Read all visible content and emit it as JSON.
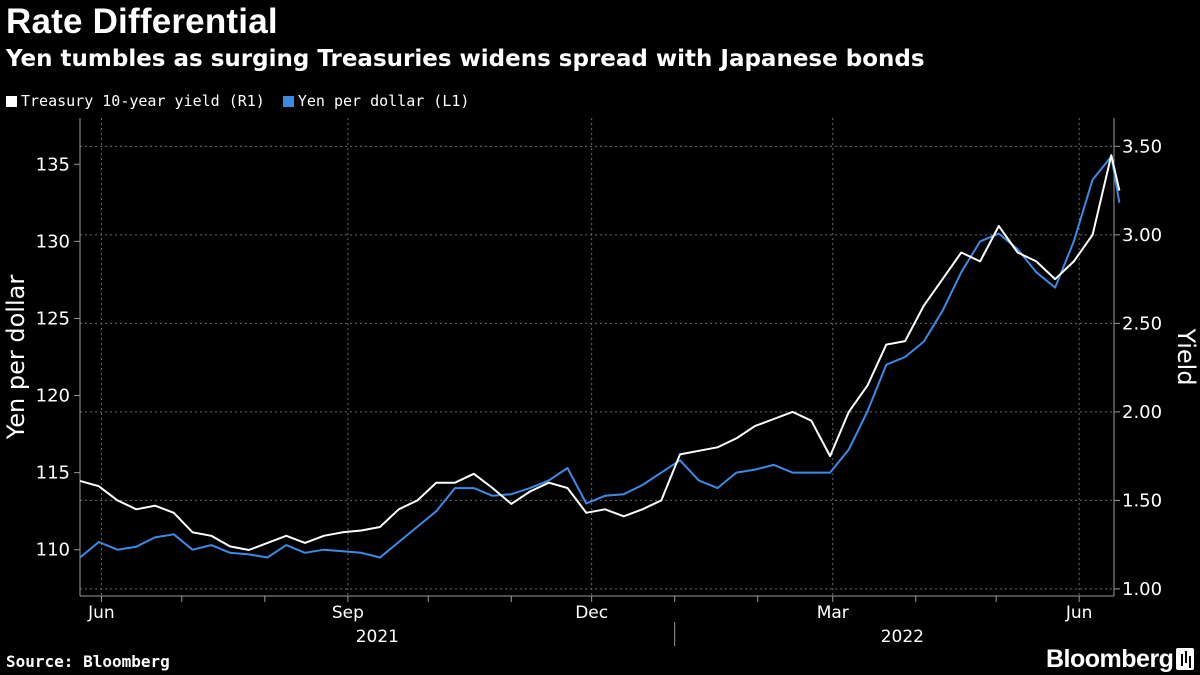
{
  "header": {
    "title": "Rate Differential",
    "subtitle": "Yen tumbles as surging Treasuries widens spread with Japanese bonds"
  },
  "legend": [
    {
      "label": "Treasury 10-year yield (R1)",
      "color": "#ffffff"
    },
    {
      "label": "Yen per dollar (L1)",
      "color": "#3b8be6"
    }
  ],
  "footer": {
    "source": "Source: Bloomberg",
    "brand": "Bloomberg"
  },
  "chart_data": {
    "type": "line",
    "title": "Rate Differential",
    "ylabel_left": "Yen per dollar",
    "ylabel_right": "Yield",
    "ylim_left": [
      107.0,
      138.0
    ],
    "ylim_right": [
      0.96,
      3.66
    ],
    "yticks_left": [
      "110",
      "115",
      "120",
      "125",
      "130",
      "135"
    ],
    "yticks_right": [
      "1.00",
      "1.50",
      "2.00",
      "2.50",
      "3.00",
      "3.50"
    ],
    "xlim": [
      "2021-05-24",
      "2022-06-14"
    ],
    "month_labels": [
      {
        "label": "Jun",
        "date": "2021-06-01"
      },
      {
        "label": "Sep",
        "date": "2021-09-01"
      },
      {
        "label": "Dec",
        "date": "2021-12-01"
      },
      {
        "label": "Mar",
        "date": "2022-03-01"
      },
      {
        "label": "Jun",
        "date": "2022-06-01"
      }
    ],
    "year_labels": [
      {
        "label": "2021",
        "center": "2021-09-12"
      },
      {
        "label": "2022",
        "center": "2022-03-27"
      }
    ],
    "series": [
      {
        "name": "Treasury 10-year yield (R1)",
        "axis": "right",
        "color": "#ffffff",
        "points": [
          [
            "2021-05-24",
            1.61
          ],
          [
            "2021-05-31",
            1.58
          ],
          [
            "2021-06-07",
            1.5
          ],
          [
            "2021-06-14",
            1.45
          ],
          [
            "2021-06-21",
            1.47
          ],
          [
            "2021-06-28",
            1.43
          ],
          [
            "2021-07-05",
            1.32
          ],
          [
            "2021-07-12",
            1.3
          ],
          [
            "2021-07-19",
            1.24
          ],
          [
            "2021-07-26",
            1.22
          ],
          [
            "2021-08-02",
            1.26
          ],
          [
            "2021-08-09",
            1.3
          ],
          [
            "2021-08-16",
            1.26
          ],
          [
            "2021-08-23",
            1.3
          ],
          [
            "2021-08-30",
            1.32
          ],
          [
            "2021-09-06",
            1.33
          ],
          [
            "2021-09-13",
            1.35
          ],
          [
            "2021-09-20",
            1.45
          ],
          [
            "2021-09-27",
            1.5
          ],
          [
            "2021-10-04",
            1.6
          ],
          [
            "2021-10-11",
            1.6
          ],
          [
            "2021-10-18",
            1.65
          ],
          [
            "2021-10-25",
            1.57
          ],
          [
            "2021-11-01",
            1.48
          ],
          [
            "2021-11-08",
            1.55
          ],
          [
            "2021-11-15",
            1.6
          ],
          [
            "2021-11-22",
            1.57
          ],
          [
            "2021-11-29",
            1.43
          ],
          [
            "2021-12-06",
            1.45
          ],
          [
            "2021-12-13",
            1.41
          ],
          [
            "2021-12-20",
            1.45
          ],
          [
            "2021-12-27",
            1.5
          ],
          [
            "2022-01-03",
            1.76
          ],
          [
            "2022-01-10",
            1.78
          ],
          [
            "2022-01-17",
            1.8
          ],
          [
            "2022-01-24",
            1.85
          ],
          [
            "2022-01-31",
            1.92
          ],
          [
            "2022-02-07",
            1.96
          ],
          [
            "2022-02-14",
            2.0
          ],
          [
            "2022-02-21",
            1.95
          ],
          [
            "2022-02-28",
            1.75
          ],
          [
            "2022-03-07",
            2.0
          ],
          [
            "2022-03-14",
            2.15
          ],
          [
            "2022-03-21",
            2.38
          ],
          [
            "2022-03-28",
            2.4
          ],
          [
            "2022-04-04",
            2.6
          ],
          [
            "2022-04-11",
            2.75
          ],
          [
            "2022-04-18",
            2.9
          ],
          [
            "2022-04-25",
            2.85
          ],
          [
            "2022-05-02",
            3.05
          ],
          [
            "2022-05-09",
            2.9
          ],
          [
            "2022-05-16",
            2.85
          ],
          [
            "2022-05-23",
            2.75
          ],
          [
            "2022-05-30",
            2.85
          ],
          [
            "2022-06-06",
            3.0
          ],
          [
            "2022-06-13",
            3.45
          ],
          [
            "2022-06-16",
            3.25
          ]
        ]
      },
      {
        "name": "Yen per dollar (L1)",
        "axis": "left",
        "color": "#3b8be6",
        "points": [
          [
            "2021-05-24",
            109.5
          ],
          [
            "2021-05-31",
            110.5
          ],
          [
            "2021-06-07",
            110.0
          ],
          [
            "2021-06-14",
            110.2
          ],
          [
            "2021-06-21",
            110.8
          ],
          [
            "2021-06-28",
            111.0
          ],
          [
            "2021-07-05",
            110.0
          ],
          [
            "2021-07-12",
            110.3
          ],
          [
            "2021-07-19",
            109.8
          ],
          [
            "2021-07-26",
            109.7
          ],
          [
            "2021-08-02",
            109.5
          ],
          [
            "2021-08-09",
            110.3
          ],
          [
            "2021-08-16",
            109.8
          ],
          [
            "2021-08-23",
            110.0
          ],
          [
            "2021-08-30",
            109.9
          ],
          [
            "2021-09-06",
            109.8
          ],
          [
            "2021-09-13",
            109.5
          ],
          [
            "2021-09-20",
            110.5
          ],
          [
            "2021-09-27",
            111.5
          ],
          [
            "2021-10-04",
            112.5
          ],
          [
            "2021-10-11",
            114.0
          ],
          [
            "2021-10-18",
            114.0
          ],
          [
            "2021-10-25",
            113.5
          ],
          [
            "2021-11-01",
            113.6
          ],
          [
            "2021-11-08",
            114.0
          ],
          [
            "2021-11-15",
            114.5
          ],
          [
            "2021-11-22",
            115.3
          ],
          [
            "2021-11-29",
            113.0
          ],
          [
            "2021-12-06",
            113.5
          ],
          [
            "2021-12-13",
            113.6
          ],
          [
            "2021-12-20",
            114.2
          ],
          [
            "2021-12-27",
            115.0
          ],
          [
            "2022-01-03",
            115.8
          ],
          [
            "2022-01-10",
            114.5
          ],
          [
            "2022-01-17",
            114.0
          ],
          [
            "2022-01-24",
            115.0
          ],
          [
            "2022-01-31",
            115.2
          ],
          [
            "2022-02-07",
            115.5
          ],
          [
            "2022-02-14",
            115.0
          ],
          [
            "2022-02-21",
            115.0
          ],
          [
            "2022-02-28",
            115.0
          ],
          [
            "2022-03-07",
            116.5
          ],
          [
            "2022-03-14",
            119.0
          ],
          [
            "2022-03-21",
            122.0
          ],
          [
            "2022-03-28",
            122.5
          ],
          [
            "2022-04-04",
            123.5
          ],
          [
            "2022-04-11",
            125.5
          ],
          [
            "2022-04-18",
            128.0
          ],
          [
            "2022-04-25",
            130.0
          ],
          [
            "2022-05-02",
            130.5
          ],
          [
            "2022-05-09",
            129.5
          ],
          [
            "2022-05-16",
            128.0
          ],
          [
            "2022-05-23",
            127.0
          ],
          [
            "2022-05-30",
            130.0
          ],
          [
            "2022-06-06",
            134.0
          ],
          [
            "2022-06-13",
            135.5
          ],
          [
            "2022-06-16",
            132.5
          ]
        ]
      }
    ]
  }
}
